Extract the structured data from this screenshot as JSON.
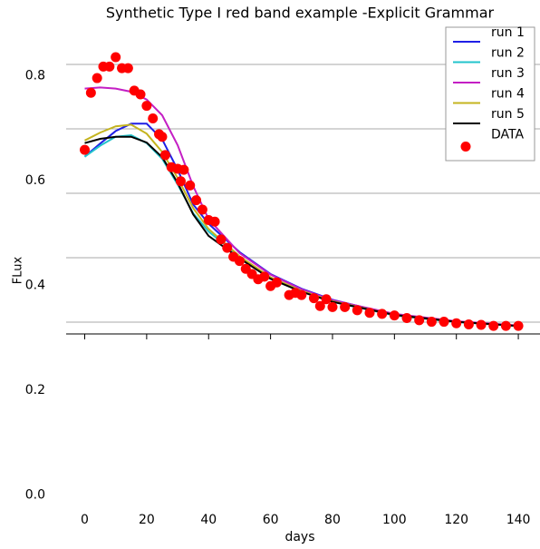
{
  "chart_data": {
    "type": "line",
    "title": "Synthetic Type I red band example -Explicit Grammar",
    "xlabel": "days",
    "ylabel": "FLux",
    "xlim": [
      -6,
      147
    ],
    "ylim": [
      -0.03,
      0.9
    ],
    "xticks": [
      0,
      20,
      40,
      60,
      80,
      100,
      120,
      140
    ],
    "yticks": [
      {
        "value": 0,
        "label": "0.0"
      },
      0.2,
      0.4,
      0.6,
      0.8
    ],
    "x": [
      0,
      5,
      10,
      15,
      20,
      25,
      30,
      35,
      40,
      50,
      60,
      70,
      80,
      100,
      120,
      140
    ],
    "series": [
      {
        "name": "run 1",
        "color": "#1f1fe6",
        "values": [
          0.646,
          0.671,
          0.695,
          0.709,
          0.709,
          0.679,
          0.621,
          0.555,
          0.518,
          0.464,
          0.422,
          0.394,
          0.373,
          0.344,
          0.331,
          0.323
        ]
      },
      {
        "name": "run 2",
        "color": "#22c4cc",
        "values": [
          0.646,
          0.667,
          0.684,
          0.687,
          0.672,
          0.642,
          0.593,
          0.538,
          0.503,
          0.455,
          0.415,
          0.389,
          0.369,
          0.343,
          0.33,
          0.323
        ]
      },
      {
        "name": "run 3",
        "color": "#c41fc4",
        "values": [
          0.776,
          0.778,
          0.776,
          0.77,
          0.755,
          0.725,
          0.668,
          0.59,
          0.527,
          0.462,
          0.421,
          0.393,
          0.372,
          0.346,
          0.332,
          0.324
        ]
      },
      {
        "name": "run 4",
        "color": "#c4b41f",
        "values": [
          0.677,
          0.692,
          0.704,
          0.707,
          0.69,
          0.655,
          0.605,
          0.548,
          0.508,
          0.456,
          0.416,
          0.39,
          0.37,
          0.344,
          0.331,
          0.323
        ]
      },
      {
        "name": "run 5",
        "color": "#000000",
        "values": [
          0.672,
          0.68,
          0.684,
          0.684,
          0.673,
          0.645,
          0.596,
          0.536,
          0.495,
          0.452,
          0.413,
          0.388,
          0.369,
          0.344,
          0.331,
          0.323
        ]
      }
    ],
    "scatter": {
      "name": "DATA",
      "color": "#ff0000",
      "x": [
        0,
        2,
        4,
        6,
        8,
        10,
        12,
        14,
        16,
        18,
        20,
        22,
        24,
        25,
        26,
        28,
        30,
        31,
        32,
        34,
        36,
        38,
        40,
        42,
        44,
        46,
        48,
        50,
        52,
        54,
        56,
        58,
        60,
        62,
        66,
        68,
        70,
        74,
        76,
        78,
        80,
        84,
        88,
        92,
        96,
        100,
        104,
        108,
        112,
        116,
        120,
        124,
        128,
        132,
        136,
        140
      ],
      "values": [
        0.659,
        0.768,
        0.796,
        0.818,
        0.818,
        0.836,
        0.815,
        0.815,
        0.772,
        0.765,
        0.743,
        0.719,
        0.689,
        0.684,
        0.649,
        0.626,
        0.623,
        0.599,
        0.621,
        0.591,
        0.563,
        0.545,
        0.525,
        0.522,
        0.488,
        0.472,
        0.455,
        0.447,
        0.432,
        0.422,
        0.412,
        0.417,
        0.399,
        0.406,
        0.382,
        0.386,
        0.382,
        0.376,
        0.361,
        0.374,
        0.359,
        0.359,
        0.353,
        0.348,
        0.346,
        0.343,
        0.338,
        0.334,
        0.331,
        0.331,
        0.328,
        0.326,
        0.325,
        0.323,
        0.323,
        0.323
      ]
    },
    "legend": "upper right"
  }
}
